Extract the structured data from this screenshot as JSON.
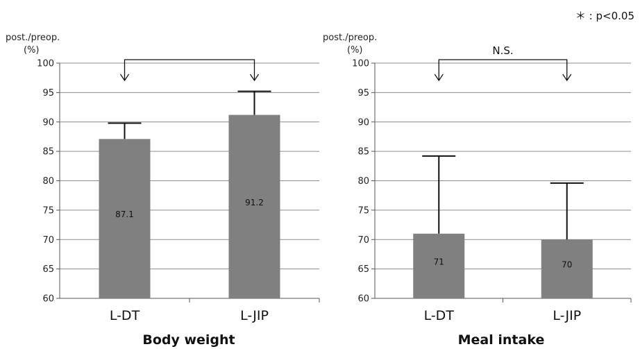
{
  "note": "＊ : p<0.05",
  "chart_data": [
    {
      "type": "bar",
      "title": "Body weight",
      "ylabel_line1": "post./preop.",
      "ylabel_line2": "(%)",
      "ylim": [
        60,
        100
      ],
      "yticks": [
        "60",
        "65",
        "70",
        "75",
        "80",
        "85",
        "90",
        "95",
        "100"
      ],
      "categories": [
        "L-DT",
        "L-JIP"
      ],
      "values": [
        87.1,
        91.2
      ],
      "value_labels": [
        "87.1",
        "91.2"
      ],
      "error_upper": [
        89.8,
        95.2
      ],
      "annotation": "",
      "bar_color": "#808080",
      "grid": true
    },
    {
      "type": "bar",
      "title": "Meal intake",
      "ylabel_line1": "post./preop.",
      "ylabel_line2": "(%)",
      "ylim": [
        60,
        100
      ],
      "yticks": [
        "60",
        "65",
        "70",
        "75",
        "80",
        "85",
        "90",
        "95",
        "100"
      ],
      "categories": [
        "L-DT",
        "L-JIP"
      ],
      "values": [
        71,
        70
      ],
      "value_labels": [
        "71",
        "70"
      ],
      "error_upper": [
        84.2,
        79.6
      ],
      "annotation": "N.S.",
      "bar_color": "#808080",
      "grid": true
    }
  ]
}
